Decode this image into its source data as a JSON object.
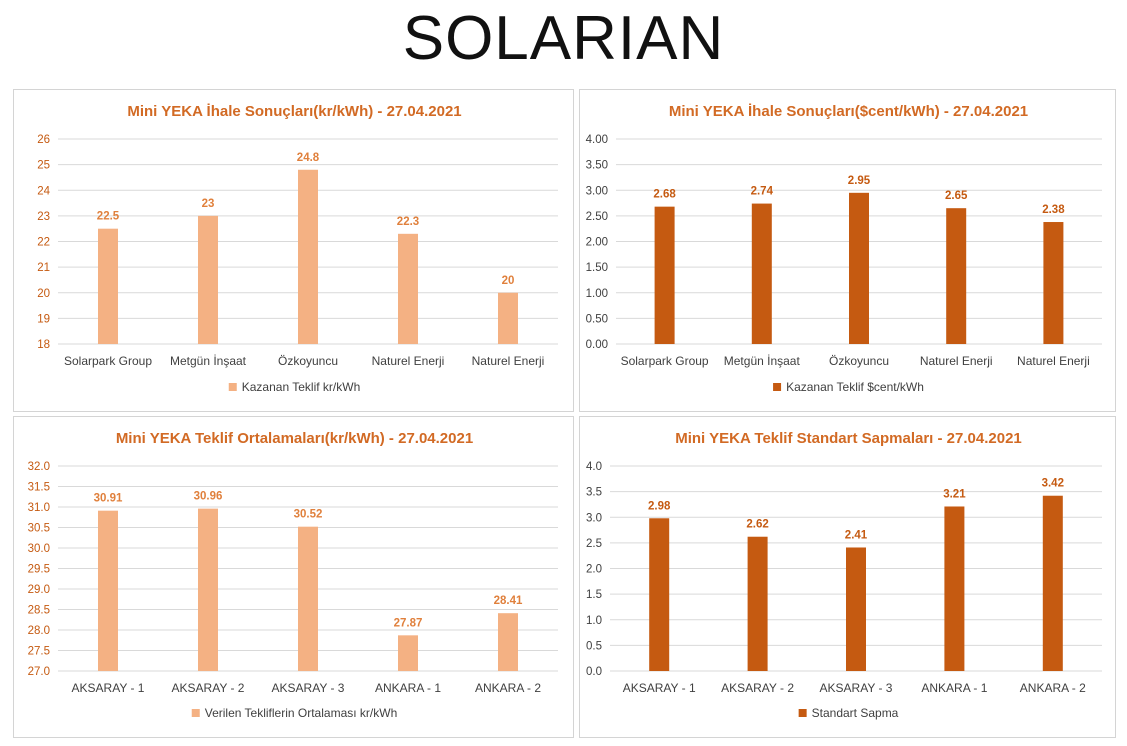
{
  "logo": "SOLARIAN",
  "chart_data": [
    {
      "type": "bar",
      "title": "Mini YEKA İhale Sonuçları(kr/kWh) - 27.04.2021",
      "categories": [
        "Solarpark Group",
        "Metgün İnşaat",
        "Özkoyuncu",
        "Naturel Enerji",
        "Naturel Enerji"
      ],
      "series": [
        {
          "name": "Kazanan Teklif kr/kWh",
          "values": [
            22.5,
            23,
            24.8,
            22.3,
            20
          ],
          "labels": [
            "22.5",
            "23",
            "24.8",
            "22.3",
            "20"
          ]
        }
      ],
      "ylim": [
        18,
        26
      ],
      "yticks": [
        "18",
        "19",
        "20",
        "21",
        "22",
        "23",
        "24",
        "25",
        "26"
      ],
      "color": "#f4b183",
      "label_color": "#e0803c",
      "tick_color": "#c55a11",
      "legend": "bottom",
      "grid": true
    },
    {
      "type": "bar",
      "title": "Mini YEKA İhale Sonuçları($cent/kWh) - 27.04.2021",
      "categories": [
        "Solarpark Group",
        "Metgün İnşaat",
        "Özkoyuncu",
        "Naturel Enerji",
        "Naturel Enerji"
      ],
      "series": [
        {
          "name": "Kazanan Teklif $cent/kWh",
          "values": [
            2.68,
            2.74,
            2.95,
            2.65,
            2.38
          ],
          "labels": [
            "2.68",
            "2.74",
            "2.95",
            "2.65",
            "2.38"
          ]
        }
      ],
      "ylim": [
        0,
        4
      ],
      "yticks": [
        "0.00",
        "0.50",
        "1.00",
        "1.50",
        "2.00",
        "2.50",
        "3.00",
        "3.50",
        "4.00"
      ],
      "color": "#c55a11",
      "label_color": "#c55a11",
      "tick_color": "#404040",
      "legend": "bottom",
      "grid": true
    },
    {
      "type": "bar",
      "title": "Mini YEKA Teklif Ortalamaları(kr/kWh) - 27.04.2021",
      "categories": [
        "AKSARAY - 1",
        "AKSARAY - 2",
        "AKSARAY - 3",
        "ANKARA - 1",
        "ANKARA - 2"
      ],
      "series": [
        {
          "name": "Verilen Tekliflerin Ortalaması kr/kWh",
          "values": [
            30.91,
            30.96,
            30.52,
            27.87,
            28.41
          ],
          "labels": [
            "30.91",
            "30.96",
            "30.52",
            "27.87",
            "28.41"
          ]
        }
      ],
      "ylim": [
        27,
        32
      ],
      "yticks": [
        "27.0",
        "27.5",
        "28.0",
        "28.5",
        "29.0",
        "29.5",
        "30.0",
        "30.5",
        "31.0",
        "31.5",
        "32.0"
      ],
      "color": "#f4b183",
      "label_color": "#e0803c",
      "tick_color": "#c55a11",
      "legend": "bottom",
      "grid": true
    },
    {
      "type": "bar",
      "title": "Mini YEKA Teklif Standart Sapmaları - 27.04.2021",
      "categories": [
        "AKSARAY - 1",
        "AKSARAY - 2",
        "AKSARAY - 3",
        "ANKARA - 1",
        "ANKARA - 2"
      ],
      "series": [
        {
          "name": "Standart Sapma",
          "values": [
            2.98,
            2.62,
            2.41,
            3.21,
            3.42
          ],
          "labels": [
            "2.98",
            "2.62",
            "2.41",
            "3.21",
            "3.42"
          ]
        }
      ],
      "ylim": [
        0,
        4
      ],
      "yticks": [
        "0.0",
        "0.5",
        "1.0",
        "1.5",
        "2.0",
        "2.5",
        "3.0",
        "3.5",
        "4.0"
      ],
      "color": "#c55a11",
      "label_color": "#c55a11",
      "tick_color": "#404040",
      "legend": "bottom",
      "grid": true
    }
  ]
}
